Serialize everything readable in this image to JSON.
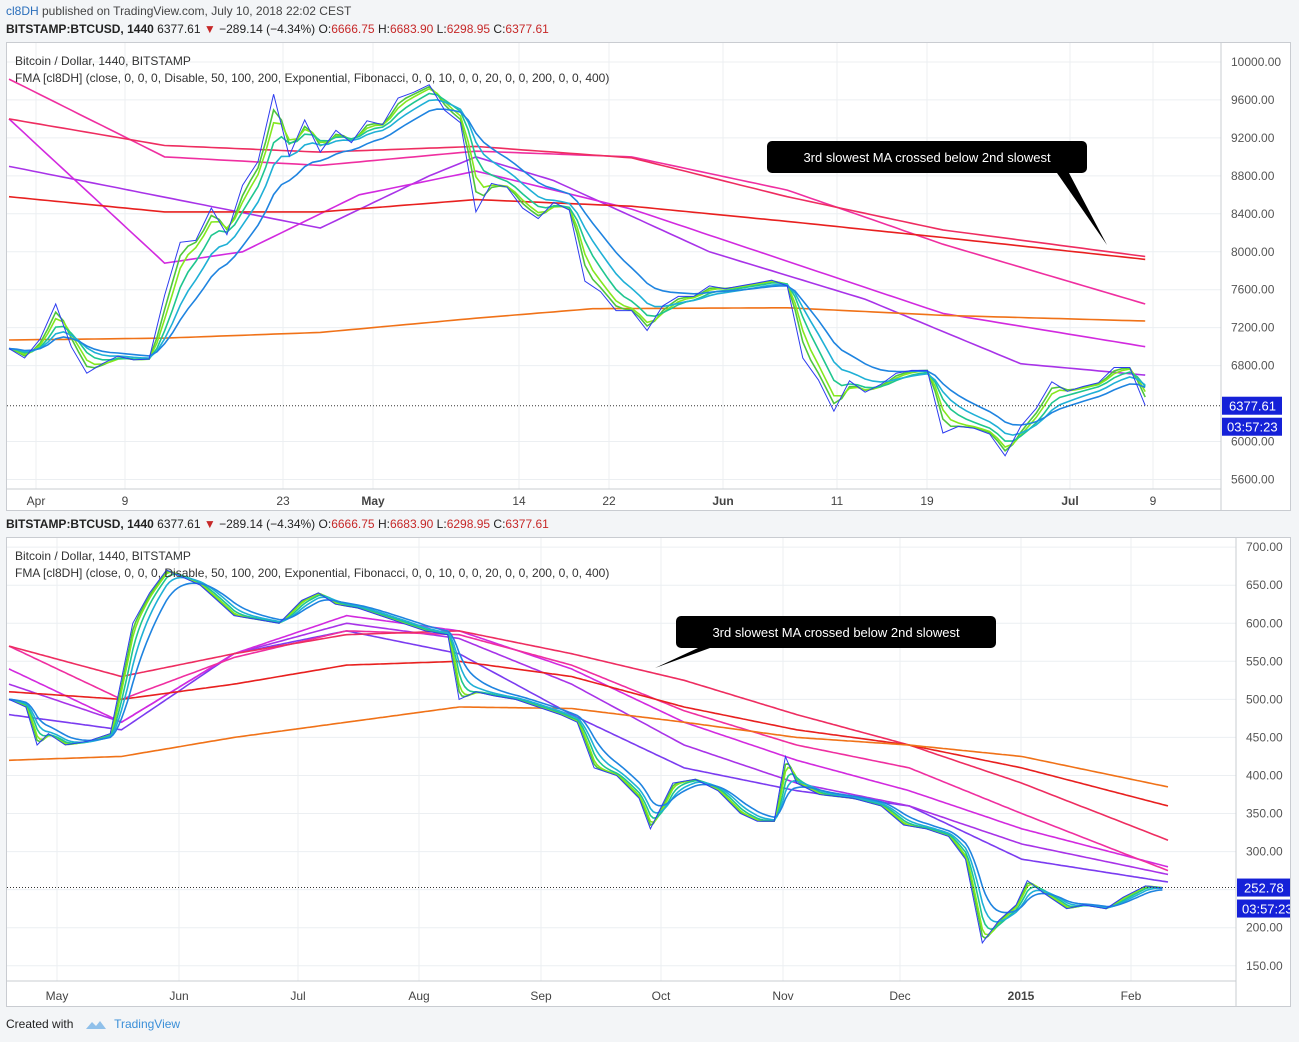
{
  "header": {
    "author": "cl8DH",
    "published": " published on TradingView.com, July 10, 2018 22:02 CEST"
  },
  "symbol_bar": {
    "symbol": "BITSTAMP:BTCUSD, 1440",
    "price": "6377.61",
    "change": "−289.14 (−4.34%)",
    "o_label": "O:",
    "o": "6666.75",
    "h_label": "H:",
    "h": "6683.90",
    "l_label": "L:",
    "l": "6298.95",
    "c_label": "C:",
    "c": "6377.61"
  },
  "footer": {
    "created": "Created with",
    "brand": "TradingView"
  },
  "colors": {
    "fast": [
      "#2d3cf0",
      "#4fc63d",
      "#84e81f",
      "#1fc68f",
      "#1fb0d6",
      "#1f84e0"
    ],
    "slow": [
      "#4c4cf0",
      "#7b3cf0",
      "#a833e8",
      "#d22adf",
      "#ef2fa0",
      "#ee2d60",
      "#e8201f",
      "#f07218"
    ],
    "grid": "#eceff2",
    "axis_text": "#555",
    "price_tag": "#1521d8",
    "callout": "#000000"
  },
  "chart_data": [
    {
      "type": "line",
      "title": "Bitcoin / Dollar, 1440, BITSTAMP",
      "subtitle": "FMA [cl8DH] (close, 0, 0, 0, Disable, 50, 100, 200, Exponential, Fibonacci, 0, 0, 10, 0, 0, 20, 0, 0, 200, 0, 0, 400)",
      "x_labels": [
        "Apr",
        "9",
        "23",
        "May",
        "14",
        "22",
        "Jun",
        "11",
        "19",
        "Jul",
        "9"
      ],
      "bold_x_labels": [
        "May",
        "Jun",
        "Jul"
      ],
      "y_ticks": [
        "10000.00",
        "9600.00",
        "9200.00",
        "8800.00",
        "8400.00",
        "8000.00",
        "7600.00",
        "7200.00",
        "6800.00",
        "6000.00",
        "5600.00"
      ],
      "ylim": [
        5500,
        10200
      ],
      "last_price": "6377.61",
      "countdown": "03:57:23",
      "annotation": "3rd slowest MA crossed below 2nd slowest",
      "price": [
        [
          0,
          6980
        ],
        [
          2,
          6880
        ],
        [
          4,
          7080
        ],
        [
          6,
          7450
        ],
        [
          8,
          7000
        ],
        [
          10,
          6720
        ],
        [
          12,
          6820
        ],
        [
          14,
          6900
        ],
        [
          16,
          6860
        ],
        [
          18,
          6870
        ],
        [
          20,
          7540
        ],
        [
          22,
          8100
        ],
        [
          24,
          8120
        ],
        [
          26,
          8460
        ],
        [
          28,
          8180
        ],
        [
          30,
          8700
        ],
        [
          32,
          8950
        ],
        [
          34,
          9660
        ],
        [
          36,
          9010
        ],
        [
          38,
          9390
        ],
        [
          40,
          9050
        ],
        [
          42,
          9280
        ],
        [
          44,
          9150
        ],
        [
          46,
          9380
        ],
        [
          48,
          9340
        ],
        [
          50,
          9620
        ],
        [
          52,
          9680
        ],
        [
          54,
          9760
        ],
        [
          56,
          9490
        ],
        [
          58,
          9360
        ],
        [
          60,
          8420
        ],
        [
          62,
          8720
        ],
        [
          64,
          8680
        ],
        [
          66,
          8460
        ],
        [
          68,
          8350
        ],
        [
          70,
          8520
        ],
        [
          72,
          8440
        ],
        [
          74,
          7690
        ],
        [
          76,
          7580
        ],
        [
          78,
          7380
        ],
        [
          80,
          7380
        ],
        [
          82,
          7170
        ],
        [
          84,
          7430
        ],
        [
          86,
          7530
        ],
        [
          88,
          7530
        ],
        [
          90,
          7640
        ],
        [
          92,
          7610
        ],
        [
          94,
          7640
        ],
        [
          96,
          7670
        ],
        [
          98,
          7700
        ],
        [
          100,
          7640
        ],
        [
          102,
          6880
        ],
        [
          104,
          6650
        ],
        [
          106,
          6320
        ],
        [
          108,
          6640
        ],
        [
          110,
          6520
        ],
        [
          112,
          6600
        ],
        [
          114,
          6720
        ],
        [
          116,
          6750
        ],
        [
          118,
          6750
        ],
        [
          120,
          6090
        ],
        [
          122,
          6160
        ],
        [
          124,
          6140
        ],
        [
          126,
          6080
        ],
        [
          128,
          5850
        ],
        [
          130,
          6160
        ],
        [
          132,
          6350
        ],
        [
          134,
          6630
        ],
        [
          136,
          6530
        ],
        [
          138,
          6580
        ],
        [
          140,
          6620
        ],
        [
          142,
          6780
        ],
        [
          144,
          6780
        ],
        [
          146,
          6380
        ]
      ],
      "x_max": 147,
      "slow_ma": [
        [
          [
            0,
            8900
          ],
          [
            40,
            8250
          ],
          [
            54,
            8800
          ],
          [
            60,
            9000
          ],
          [
            70,
            8750
          ],
          [
            90,
            8000
          ],
          [
            110,
            7500
          ],
          [
            130,
            6820
          ],
          [
            146,
            6700
          ]
        ],
        [
          [
            0,
            9400
          ],
          [
            20,
            7880
          ],
          [
            30,
            8000
          ],
          [
            45,
            8600
          ],
          [
            60,
            8850
          ],
          [
            80,
            8450
          ],
          [
            100,
            7900
          ],
          [
            120,
            7350
          ],
          [
            146,
            7000
          ]
        ],
        [
          [
            0,
            9820
          ],
          [
            20,
            9000
          ],
          [
            40,
            8910
          ],
          [
            60,
            9060
          ],
          [
            80,
            9000
          ],
          [
            100,
            8650
          ],
          [
            120,
            8080
          ],
          [
            146,
            7450
          ]
        ],
        [
          [
            0,
            9400
          ],
          [
            20,
            9120
          ],
          [
            40,
            9050
          ],
          [
            60,
            9110
          ],
          [
            80,
            8990
          ],
          [
            100,
            8580
          ],
          [
            120,
            8230
          ],
          [
            146,
            7950
          ]
        ],
        [
          [
            0,
            8580
          ],
          [
            20,
            8420
          ],
          [
            40,
            8420
          ],
          [
            60,
            8550
          ],
          [
            80,
            8480
          ],
          [
            100,
            8320
          ],
          [
            120,
            8150
          ],
          [
            146,
            7920
          ]
        ],
        [
          [
            0,
            7070
          ],
          [
            20,
            7090
          ],
          [
            40,
            7150
          ],
          [
            60,
            7300
          ],
          [
            75,
            7400
          ],
          [
            100,
            7410
          ],
          [
            120,
            7330
          ],
          [
            146,
            7270
          ]
        ]
      ]
    },
    {
      "type": "line",
      "title": "Bitcoin / Dollar, 1440, BITSTAMP",
      "subtitle": "FMA [cl8DH] (close, 0, 0, 0, Disable, 50, 100, 200, Exponential, Fibonacci, 0, 0, 10, 0, 0, 20, 0, 0, 200, 0, 0, 400)",
      "x_labels": [
        "May",
        "Jun",
        "Jul",
        "Aug",
        "Sep",
        "Oct",
        "Nov",
        "Dec",
        "2015",
        "Feb"
      ],
      "bold_x_labels": [
        "2015"
      ],
      "y_ticks": [
        "700.00",
        "650.00",
        "600.00",
        "550.00",
        "500.00",
        "450.00",
        "400.00",
        "350.00",
        "300.00",
        "250.00",
        "200.00",
        "150.00"
      ],
      "ylim": [
        130,
        712
      ],
      "last_price": "252.78",
      "countdown": "03:57:23",
      "annotation": "3rd slowest MA crossed below 2nd slowest",
      "price": [
        [
          0,
          500
        ],
        [
          6,
          490
        ],
        [
          10,
          440
        ],
        [
          14,
          455
        ],
        [
          20,
          440
        ],
        [
          28,
          445
        ],
        [
          36,
          455
        ],
        [
          44,
          600
        ],
        [
          50,
          640
        ],
        [
          56,
          670
        ],
        [
          62,
          660
        ],
        [
          68,
          650
        ],
        [
          74,
          630
        ],
        [
          80,
          610
        ],
        [
          88,
          605
        ],
        [
          96,
          600
        ],
        [
          104,
          630
        ],
        [
          110,
          640
        ],
        [
          116,
          625
        ],
        [
          124,
          620
        ],
        [
          132,
          610
        ],
        [
          140,
          600
        ],
        [
          148,
          590
        ],
        [
          156,
          585
        ],
        [
          160,
          500
        ],
        [
          166,
          510
        ],
        [
          172,
          505
        ],
        [
          180,
          500
        ],
        [
          188,
          490
        ],
        [
          196,
          480
        ],
        [
          202,
          470
        ],
        [
          208,
          410
        ],
        [
          216,
          400
        ],
        [
          224,
          370
        ],
        [
          228,
          330
        ],
        [
          236,
          390
        ],
        [
          244,
          395
        ],
        [
          252,
          380
        ],
        [
          260,
          350
        ],
        [
          266,
          340
        ],
        [
          272,
          340
        ],
        [
          276,
          425
        ],
        [
          280,
          390
        ],
        [
          288,
          375
        ],
        [
          300,
          370
        ],
        [
          310,
          360
        ],
        [
          318,
          335
        ],
        [
          326,
          330
        ],
        [
          334,
          320
        ],
        [
          340,
          290
        ],
        [
          346,
          180
        ],
        [
          352,
          210
        ],
        [
          358,
          230
        ],
        [
          362,
          262
        ],
        [
          368,
          245
        ],
        [
          376,
          225
        ],
        [
          382,
          230
        ],
        [
          390,
          225
        ],
        [
          396,
          240
        ],
        [
          404,
          255
        ],
        [
          410,
          252
        ]
      ],
      "x_max": 412,
      "slow_ma": [
        [
          [
            0,
            480
          ],
          [
            40,
            460
          ],
          [
            80,
            560
          ],
          [
            120,
            590
          ],
          [
            160,
            560
          ],
          [
            200,
            480
          ],
          [
            240,
            410
          ],
          [
            280,
            380
          ],
          [
            320,
            360
          ],
          [
            360,
            290
          ],
          [
            412,
            260
          ]
        ],
        [
          [
            0,
            520
          ],
          [
            40,
            470
          ],
          [
            80,
            560
          ],
          [
            120,
            600
          ],
          [
            160,
            580
          ],
          [
            200,
            520
          ],
          [
            240,
            440
          ],
          [
            280,
            390
          ],
          [
            320,
            360
          ],
          [
            360,
            310
          ],
          [
            412,
            270
          ]
        ],
        [
          [
            0,
            540
          ],
          [
            40,
            470
          ],
          [
            80,
            560
          ],
          [
            120,
            610
          ],
          [
            160,
            590
          ],
          [
            200,
            540
          ],
          [
            240,
            470
          ],
          [
            280,
            420
          ],
          [
            320,
            380
          ],
          [
            360,
            330
          ],
          [
            412,
            280
          ]
        ],
        [
          [
            0,
            570
          ],
          [
            40,
            500
          ],
          [
            80,
            555
          ],
          [
            120,
            590
          ],
          [
            160,
            585
          ],
          [
            200,
            545
          ],
          [
            240,
            485
          ],
          [
            280,
            440
          ],
          [
            320,
            410
          ],
          [
            360,
            350
          ],
          [
            412,
            275
          ]
        ],
        [
          [
            0,
            570
          ],
          [
            40,
            530
          ],
          [
            80,
            560
          ],
          [
            120,
            585
          ],
          [
            160,
            590
          ],
          [
            200,
            560
          ],
          [
            240,
            525
          ],
          [
            280,
            480
          ],
          [
            320,
            440
          ],
          [
            360,
            390
          ],
          [
            412,
            315
          ]
        ],
        [
          [
            0,
            510
          ],
          [
            40,
            500
          ],
          [
            80,
            520
          ],
          [
            120,
            545
          ],
          [
            160,
            550
          ],
          [
            200,
            530
          ],
          [
            240,
            490
          ],
          [
            280,
            460
          ],
          [
            320,
            440
          ],
          [
            360,
            410
          ],
          [
            412,
            360
          ]
        ],
        [
          [
            0,
            420
          ],
          [
            40,
            425
          ],
          [
            80,
            450
          ],
          [
            120,
            470
          ],
          [
            160,
            490
          ],
          [
            200,
            488
          ],
          [
            240,
            470
          ],
          [
            280,
            450
          ],
          [
            320,
            440
          ],
          [
            360,
            425
          ],
          [
            412,
            385
          ]
        ]
      ]
    }
  ]
}
